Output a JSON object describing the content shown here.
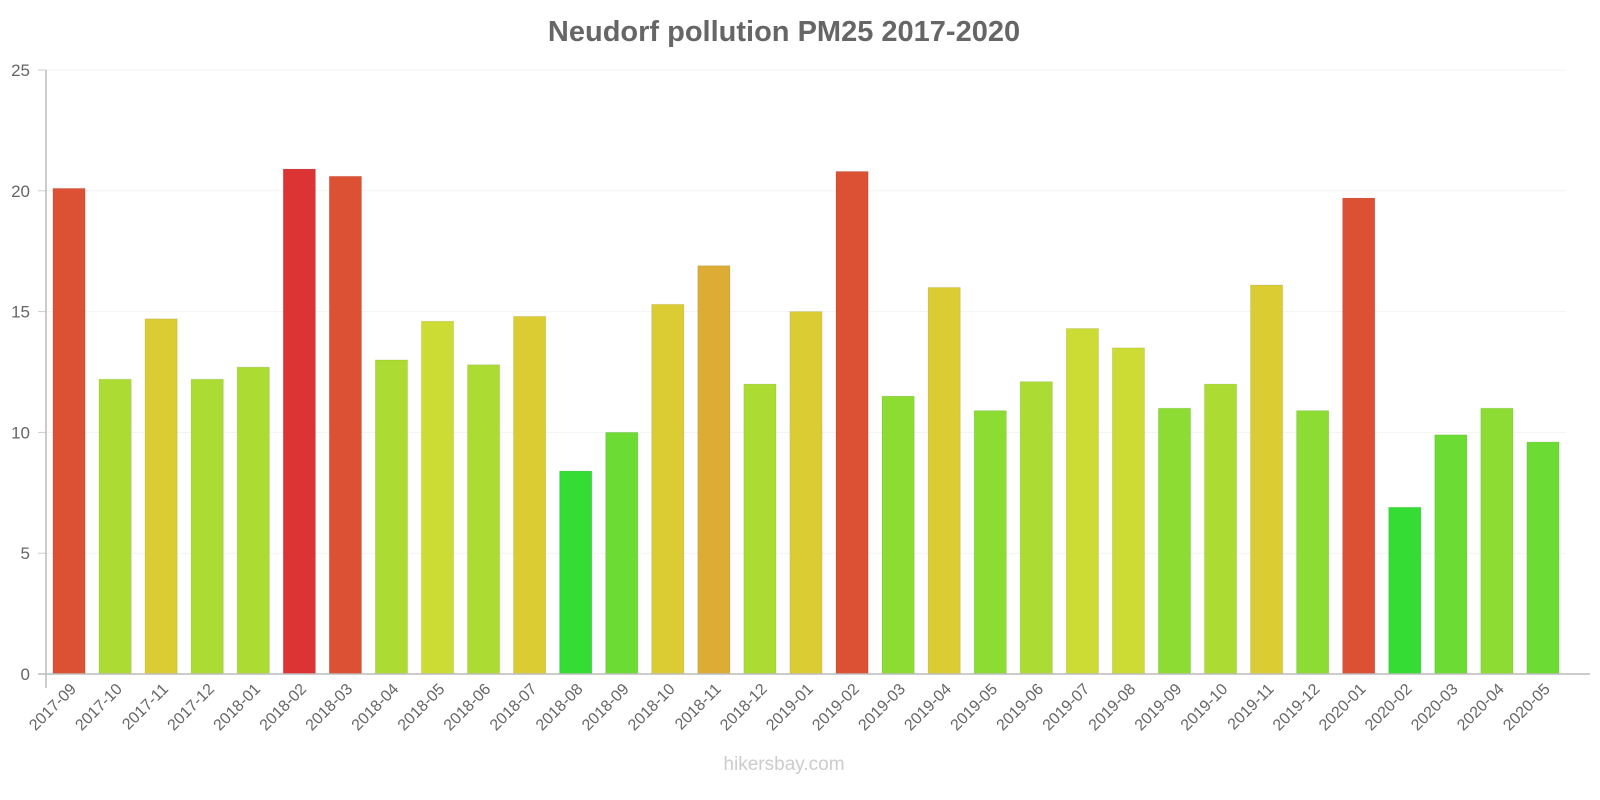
{
  "chart_data": {
    "type": "bar",
    "title": "Neudorf pollution PM25 2017-2020",
    "xlabel": "",
    "ylabel": "",
    "ylim": [
      0,
      25
    ],
    "yticks": [
      0,
      5,
      10,
      15,
      20,
      25
    ],
    "grid": true,
    "legend": null,
    "categories": [
      "2017-09",
      "2017-10",
      "2017-11",
      "2017-12",
      "2018-01",
      "2018-02",
      "2018-03",
      "2018-04",
      "2018-05",
      "2018-06",
      "2018-07",
      "2018-08",
      "2018-09",
      "2018-10",
      "2018-11",
      "2018-12",
      "2019-01",
      "2019-02",
      "2019-03",
      "2019-04",
      "2019-05",
      "2019-06",
      "2019-07",
      "2019-08",
      "2019-09",
      "2019-10",
      "2019-11",
      "2019-12",
      "2020-01",
      "2020-02",
      "2020-03",
      "2020-04",
      "2020-05"
    ],
    "values": [
      20.1,
      12.2,
      14.7,
      12.2,
      12.7,
      20.9,
      20.6,
      13.0,
      14.6,
      12.8,
      14.8,
      8.4,
      10.0,
      15.3,
      16.9,
      12.0,
      15.0,
      20.8,
      11.5,
      16.0,
      10.9,
      12.1,
      14.3,
      13.5,
      11.0,
      12.0,
      16.1,
      10.9,
      19.7,
      6.9,
      9.9,
      11.0,
      9.6
    ],
    "colors": [
      "#dc5034",
      "#acdc34",
      "#dccc34",
      "#acdc34",
      "#acdc34",
      "#dc3434",
      "#dc5034",
      "#acdc34",
      "#ccdc34",
      "#acdc34",
      "#dccc34",
      "#34dc34",
      "#6cdc34",
      "#dccc34",
      "#dcac34",
      "#acdc34",
      "#dccc34",
      "#dc5034",
      "#8cdc34",
      "#dccc34",
      "#8cdc34",
      "#acdc34",
      "#ccdc34",
      "#ccdc34",
      "#8cdc34",
      "#acdc34",
      "#dccc34",
      "#8cdc34",
      "#dc5034",
      "#34dc34",
      "#6cdc34",
      "#8cdc34",
      "#6cdc34"
    ]
  },
  "footer": {
    "watermark": "hikersbay.com"
  }
}
